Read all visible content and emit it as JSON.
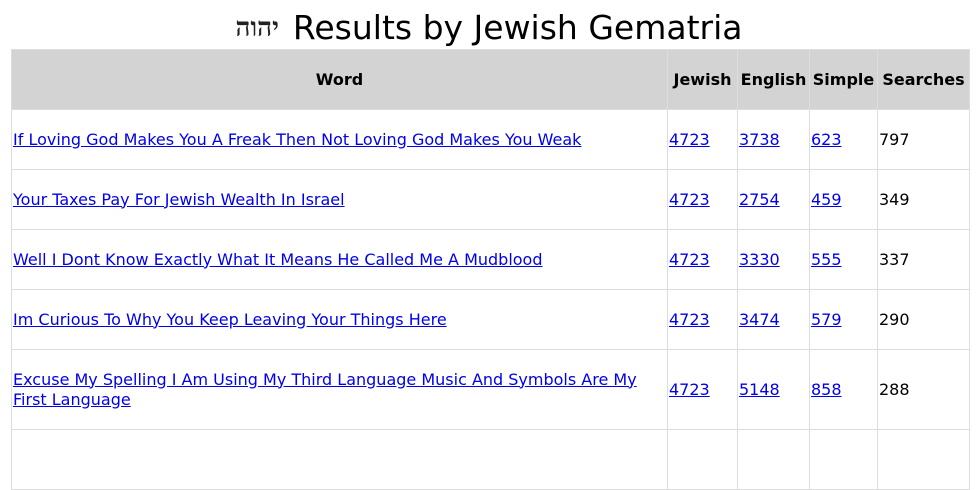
{
  "title": {
    "hebrew": "יהוה",
    "text": "Results by Jewish Gematria"
  },
  "headers": [
    "Word",
    "Jewish",
    "English",
    "Simple",
    "Searches"
  ],
  "rows": [
    {
      "word": "If Loving God Makes You A Freak Then Not Loving God Makes You Weak",
      "jewish": "4723",
      "english": "3738",
      "simple": "623",
      "searches": "797"
    },
    {
      "word": "Your Taxes Pay For Jewish Wealth In Israel",
      "jewish": "4723",
      "english": "2754",
      "simple": "459",
      "searches": "349"
    },
    {
      "word": "Well I Dont Know Exactly What It Means He Called Me A Mudblood",
      "jewish": "4723",
      "english": "3330",
      "simple": "555",
      "searches": "337"
    },
    {
      "word": "Im Curious To Why You Keep Leaving Your Things Here",
      "jewish": "4723",
      "english": "3474",
      "simple": "579",
      "searches": "290"
    },
    {
      "word": "Excuse My Spelling I Am Using My Third Language Music And Symbols Are My First Language",
      "jewish": "4723",
      "english": "5148",
      "simple": "858",
      "searches": "288"
    }
  ]
}
